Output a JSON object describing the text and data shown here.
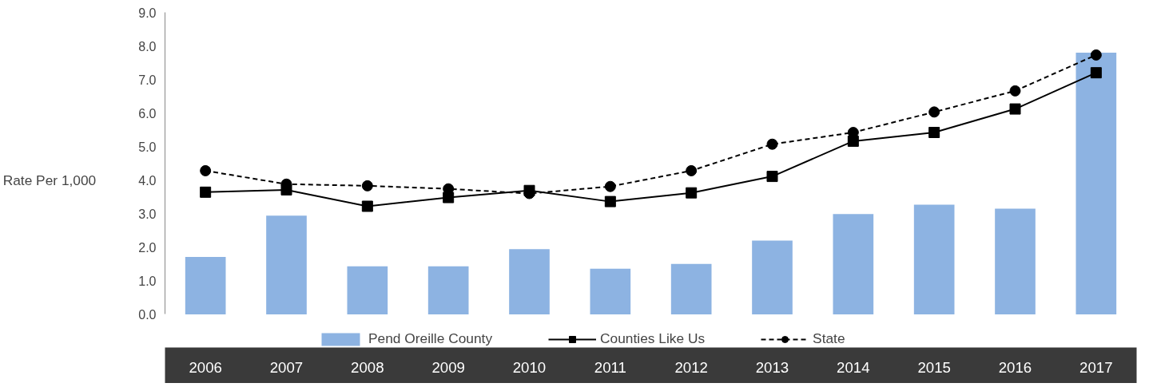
{
  "chart_data": {
    "type": "bar",
    "ylabel": "Rate Per 1,000",
    "categories": [
      "2006",
      "2007",
      "2008",
      "2009",
      "2010",
      "2011",
      "2012",
      "2013",
      "2014",
      "2015",
      "2016",
      "2017"
    ],
    "series": [
      {
        "name": "Pend Oreille County",
        "color": "#8db3e2",
        "values": [
          1.71,
          2.94,
          1.43,
          1.43,
          1.94,
          1.36,
          1.5,
          2.2,
          2.99,
          3.27,
          3.15,
          7.8
        ]
      },
      {
        "name": "Counties Like Us",
        "type": "line",
        "color": "#000000",
        "marker": "square",
        "line_style": "solid",
        "values": [
          3.64,
          3.71,
          3.22,
          3.48,
          3.69,
          3.36,
          3.62,
          4.11,
          5.16,
          5.42,
          6.12,
          7.2
        ]
      },
      {
        "name": "State",
        "type": "line",
        "color": "#000000",
        "marker": "circle",
        "line_style": "dashed",
        "values": [
          4.28,
          3.88,
          3.83,
          3.74,
          3.6,
          3.81,
          4.28,
          5.07,
          5.42,
          6.03,
          6.66,
          7.73
        ]
      }
    ],
    "ylim": [
      0,
      9
    ],
    "yticks": [
      {
        "value": 0,
        "label": "0.0"
      },
      {
        "value": 1,
        "label": "1.0"
      },
      {
        "value": 2,
        "label": "2.0"
      },
      {
        "value": 3,
        "label": "3.0"
      },
      {
        "value": 4,
        "label": "4.0"
      },
      {
        "value": 5,
        "label": "5.0"
      },
      {
        "value": 6,
        "label": "6.0"
      },
      {
        "value": 7,
        "label": "7.0"
      },
      {
        "value": 8,
        "label": "8.0"
      },
      {
        "value": 9,
        "label": "9.0"
      }
    ],
    "grid": false,
    "legend": "bottom"
  }
}
